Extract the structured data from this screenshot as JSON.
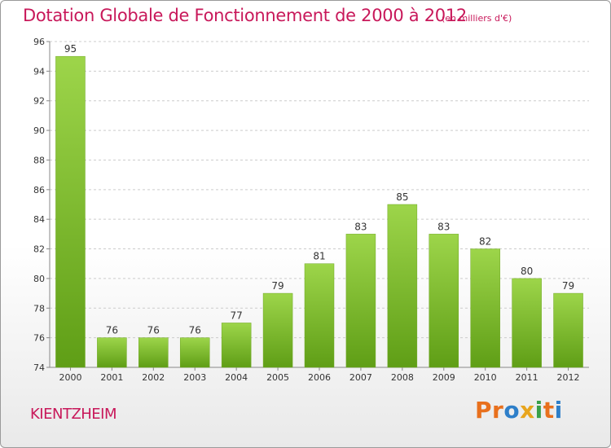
{
  "chart_data": {
    "type": "bar",
    "title": "Dotation Globale de Fonctionnement de 2000 à 2012",
    "subtitle": "(en milliers d'€)",
    "categories": [
      "2000",
      "2001",
      "2002",
      "2003",
      "2004",
      "2005",
      "2006",
      "2007",
      "2008",
      "2009",
      "2010",
      "2011",
      "2012"
    ],
    "values": [
      95,
      76,
      76,
      76,
      77,
      79,
      81,
      83,
      85,
      83,
      82,
      80,
      79
    ],
    "ylim": [
      74,
      96
    ],
    "yticks": [
      74,
      76,
      78,
      80,
      82,
      84,
      86,
      88,
      90,
      92,
      94,
      96
    ],
    "grid": true,
    "bar_color": "#7cbf2a"
  },
  "footer": {
    "place": "KIENTZHEIM",
    "logo_letters": [
      "P",
      "r",
      "o",
      "x",
      "i",
      "t",
      "i"
    ],
    "logo_colors": [
      "#e8701d",
      "#e8701d",
      "#2e7fc9",
      "#e8a51d",
      "#3aa04a",
      "#e8701d",
      "#2e7fc9"
    ]
  },
  "colors": {
    "title": "#c8185a",
    "grid": "#cccccc"
  }
}
